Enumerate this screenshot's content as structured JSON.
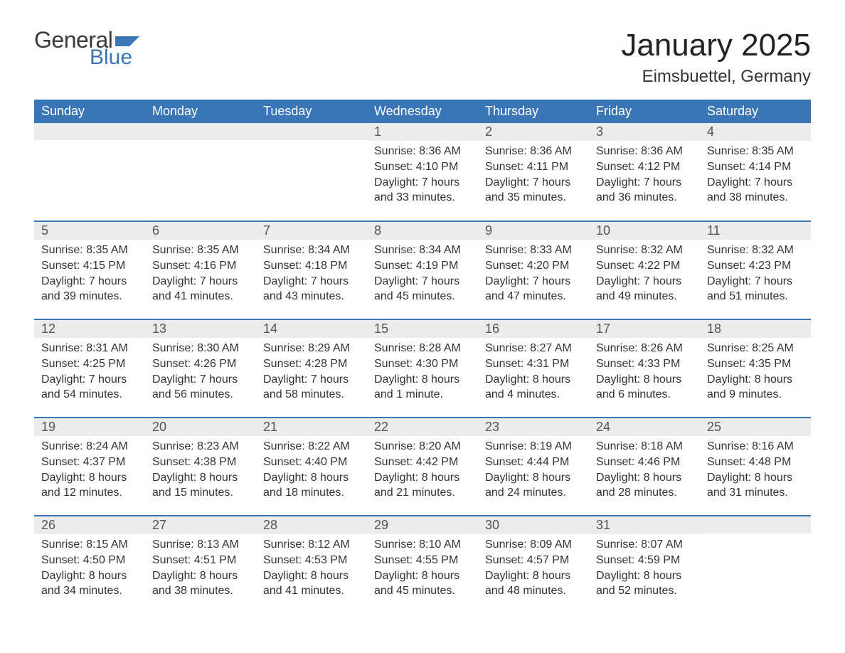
{
  "logo": {
    "word1": "General",
    "word2": "Blue",
    "text_color": "#3a3a3a",
    "accent_color": "#3a76b6"
  },
  "header": {
    "month_title": "January 2025",
    "location": "Eimsbuettel, Germany"
  },
  "calendar": {
    "day_names": [
      "Sunday",
      "Monday",
      "Tuesday",
      "Wednesday",
      "Thursday",
      "Friday",
      "Saturday"
    ],
    "header_bg": "#3a76b6",
    "header_text_color": "#ffffff",
    "row_separator_color": "#3a76b6",
    "daynum_bg": "#ececec",
    "body_text_color": "#333333",
    "weeks": [
      [
        {
          "n": "",
          "l1": "",
          "l2": "",
          "l3": "",
          "l4": ""
        },
        {
          "n": "",
          "l1": "",
          "l2": "",
          "l3": "",
          "l4": ""
        },
        {
          "n": "",
          "l1": "",
          "l2": "",
          "l3": "",
          "l4": ""
        },
        {
          "n": "1",
          "l1": "Sunrise: 8:36 AM",
          "l2": "Sunset: 4:10 PM",
          "l3": "Daylight: 7 hours",
          "l4": "and 33 minutes."
        },
        {
          "n": "2",
          "l1": "Sunrise: 8:36 AM",
          "l2": "Sunset: 4:11 PM",
          "l3": "Daylight: 7 hours",
          "l4": "and 35 minutes."
        },
        {
          "n": "3",
          "l1": "Sunrise: 8:36 AM",
          "l2": "Sunset: 4:12 PM",
          "l3": "Daylight: 7 hours",
          "l4": "and 36 minutes."
        },
        {
          "n": "4",
          "l1": "Sunrise: 8:35 AM",
          "l2": "Sunset: 4:14 PM",
          "l3": "Daylight: 7 hours",
          "l4": "and 38 minutes."
        }
      ],
      [
        {
          "n": "5",
          "l1": "Sunrise: 8:35 AM",
          "l2": "Sunset: 4:15 PM",
          "l3": "Daylight: 7 hours",
          "l4": "and 39 minutes."
        },
        {
          "n": "6",
          "l1": "Sunrise: 8:35 AM",
          "l2": "Sunset: 4:16 PM",
          "l3": "Daylight: 7 hours",
          "l4": "and 41 minutes."
        },
        {
          "n": "7",
          "l1": "Sunrise: 8:34 AM",
          "l2": "Sunset: 4:18 PM",
          "l3": "Daylight: 7 hours",
          "l4": "and 43 minutes."
        },
        {
          "n": "8",
          "l1": "Sunrise: 8:34 AM",
          "l2": "Sunset: 4:19 PM",
          "l3": "Daylight: 7 hours",
          "l4": "and 45 minutes."
        },
        {
          "n": "9",
          "l1": "Sunrise: 8:33 AM",
          "l2": "Sunset: 4:20 PM",
          "l3": "Daylight: 7 hours",
          "l4": "and 47 minutes."
        },
        {
          "n": "10",
          "l1": "Sunrise: 8:32 AM",
          "l2": "Sunset: 4:22 PM",
          "l3": "Daylight: 7 hours",
          "l4": "and 49 minutes."
        },
        {
          "n": "11",
          "l1": "Sunrise: 8:32 AM",
          "l2": "Sunset: 4:23 PM",
          "l3": "Daylight: 7 hours",
          "l4": "and 51 minutes."
        }
      ],
      [
        {
          "n": "12",
          "l1": "Sunrise: 8:31 AM",
          "l2": "Sunset: 4:25 PM",
          "l3": "Daylight: 7 hours",
          "l4": "and 54 minutes."
        },
        {
          "n": "13",
          "l1": "Sunrise: 8:30 AM",
          "l2": "Sunset: 4:26 PM",
          "l3": "Daylight: 7 hours",
          "l4": "and 56 minutes."
        },
        {
          "n": "14",
          "l1": "Sunrise: 8:29 AM",
          "l2": "Sunset: 4:28 PM",
          "l3": "Daylight: 7 hours",
          "l4": "and 58 minutes."
        },
        {
          "n": "15",
          "l1": "Sunrise: 8:28 AM",
          "l2": "Sunset: 4:30 PM",
          "l3": "Daylight: 8 hours",
          "l4": "and 1 minute."
        },
        {
          "n": "16",
          "l1": "Sunrise: 8:27 AM",
          "l2": "Sunset: 4:31 PM",
          "l3": "Daylight: 8 hours",
          "l4": "and 4 minutes."
        },
        {
          "n": "17",
          "l1": "Sunrise: 8:26 AM",
          "l2": "Sunset: 4:33 PM",
          "l3": "Daylight: 8 hours",
          "l4": "and 6 minutes."
        },
        {
          "n": "18",
          "l1": "Sunrise: 8:25 AM",
          "l2": "Sunset: 4:35 PM",
          "l3": "Daylight: 8 hours",
          "l4": "and 9 minutes."
        }
      ],
      [
        {
          "n": "19",
          "l1": "Sunrise: 8:24 AM",
          "l2": "Sunset: 4:37 PM",
          "l3": "Daylight: 8 hours",
          "l4": "and 12 minutes."
        },
        {
          "n": "20",
          "l1": "Sunrise: 8:23 AM",
          "l2": "Sunset: 4:38 PM",
          "l3": "Daylight: 8 hours",
          "l4": "and 15 minutes."
        },
        {
          "n": "21",
          "l1": "Sunrise: 8:22 AM",
          "l2": "Sunset: 4:40 PM",
          "l3": "Daylight: 8 hours",
          "l4": "and 18 minutes."
        },
        {
          "n": "22",
          "l1": "Sunrise: 8:20 AM",
          "l2": "Sunset: 4:42 PM",
          "l3": "Daylight: 8 hours",
          "l4": "and 21 minutes."
        },
        {
          "n": "23",
          "l1": "Sunrise: 8:19 AM",
          "l2": "Sunset: 4:44 PM",
          "l3": "Daylight: 8 hours",
          "l4": "and 24 minutes."
        },
        {
          "n": "24",
          "l1": "Sunrise: 8:18 AM",
          "l2": "Sunset: 4:46 PM",
          "l3": "Daylight: 8 hours",
          "l4": "and 28 minutes."
        },
        {
          "n": "25",
          "l1": "Sunrise: 8:16 AM",
          "l2": "Sunset: 4:48 PM",
          "l3": "Daylight: 8 hours",
          "l4": "and 31 minutes."
        }
      ],
      [
        {
          "n": "26",
          "l1": "Sunrise: 8:15 AM",
          "l2": "Sunset: 4:50 PM",
          "l3": "Daylight: 8 hours",
          "l4": "and 34 minutes."
        },
        {
          "n": "27",
          "l1": "Sunrise: 8:13 AM",
          "l2": "Sunset: 4:51 PM",
          "l3": "Daylight: 8 hours",
          "l4": "and 38 minutes."
        },
        {
          "n": "28",
          "l1": "Sunrise: 8:12 AM",
          "l2": "Sunset: 4:53 PM",
          "l3": "Daylight: 8 hours",
          "l4": "and 41 minutes."
        },
        {
          "n": "29",
          "l1": "Sunrise: 8:10 AM",
          "l2": "Sunset: 4:55 PM",
          "l3": "Daylight: 8 hours",
          "l4": "and 45 minutes."
        },
        {
          "n": "30",
          "l1": "Sunrise: 8:09 AM",
          "l2": "Sunset: 4:57 PM",
          "l3": "Daylight: 8 hours",
          "l4": "and 48 minutes."
        },
        {
          "n": "31",
          "l1": "Sunrise: 8:07 AM",
          "l2": "Sunset: 4:59 PM",
          "l3": "Daylight: 8 hours",
          "l4": "and 52 minutes."
        },
        {
          "n": "",
          "l1": "",
          "l2": "",
          "l3": "",
          "l4": ""
        }
      ]
    ]
  }
}
